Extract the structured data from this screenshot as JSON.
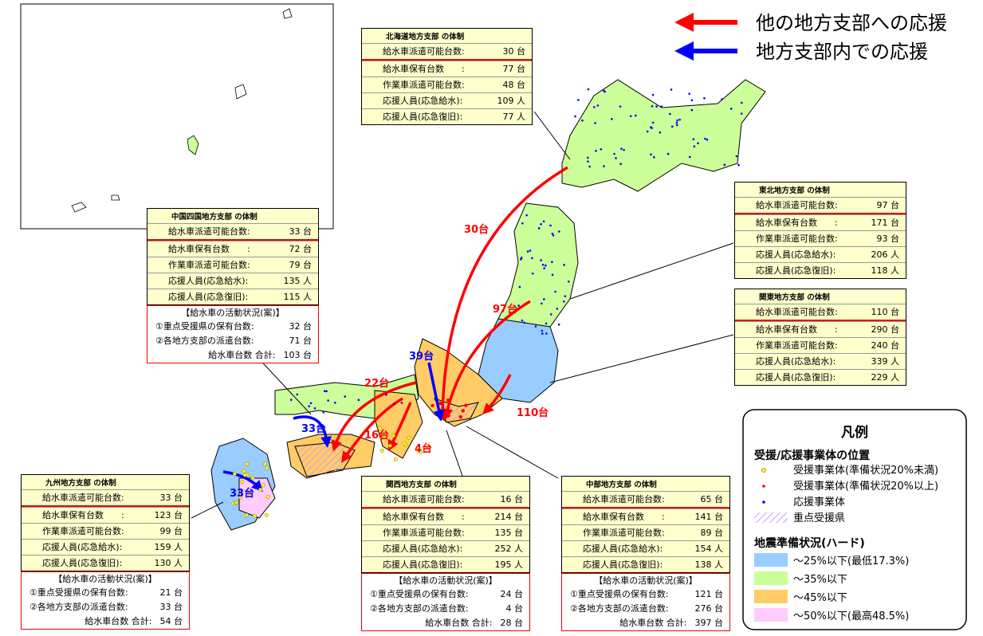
{
  "arrow_legend": [
    {
      "label": "他の地方支部への応援",
      "color": "#ff0000"
    },
    {
      "label": "地方支部内での応援",
      "color": "#0000ff"
    }
  ],
  "boxes": [
    {
      "title": "北海道地方支部 の体制",
      "rows": [
        [
          "給水車派遣可能台数:",
          "30 台"
        ],
        [
          "給水車保有台数　　:",
          "77 台"
        ],
        [
          "作業車派遣可能台数:",
          "48 台"
        ],
        [
          "応援人員(応急給水):",
          "109 人"
        ],
        [
          "応援人員(応急復旧):",
          "77 人"
        ]
      ]
    },
    {
      "title": "中国四国地方支部 の体制",
      "rows": [
        [
          "給水車派遣可能台数:",
          "33 台"
        ],
        [
          "給水車保有台数　　:",
          "72 台"
        ],
        [
          "作業車派遣可能台数:",
          "79 台"
        ],
        [
          "応援人員(応急給水):",
          "135 人"
        ],
        [
          "応援人員(応急復旧):",
          "115 人"
        ]
      ],
      "activity": {
        "title": "【給水車の活動状況(案)】",
        "rows": [
          [
            "①重点受援県の保有台数:",
            "32 台"
          ],
          [
            "②各地方支部の派遣台数:",
            "71 台"
          ],
          [
            "給水車台数 合計:",
            "103 台"
          ]
        ]
      }
    },
    {
      "title": "東北地方支部 の体制",
      "rows": [
        [
          "給水車派遣可能台数:",
          "97 台"
        ],
        [
          "給水車保有台数　　:",
          "171 台"
        ],
        [
          "作業車派遣可能台数:",
          "93 台"
        ],
        [
          "応援人員(応急給水):",
          "206 人"
        ],
        [
          "応援人員(応急復旧):",
          "118 人"
        ]
      ]
    },
    {
      "title": "関東地方支部 の体制",
      "rows": [
        [
          "給水車派遣可能台数:",
          "110 台"
        ],
        [
          "給水車保有台数　　:",
          "290 台"
        ],
        [
          "作業車派遣可能台数:",
          "240 台"
        ],
        [
          "応援人員(応急給水):",
          "339 人"
        ],
        [
          "応援人員(応急復旧):",
          "229 人"
        ]
      ]
    },
    {
      "title": "九州地方支部 の体制",
      "rows": [
        [
          "給水車派遣可能台数:",
          "33 台"
        ],
        [
          "給水車保有台数　　:",
          "123 台"
        ],
        [
          "作業車派遣可能台数:",
          "99 台"
        ],
        [
          "応援人員(応急給水):",
          "159 人"
        ],
        [
          "応援人員(応急復旧):",
          "130 人"
        ]
      ],
      "activity": {
        "title": "【給水車の活動状況(案)】",
        "rows": [
          [
            "①重点受援県の保有台数:",
            "21 台"
          ],
          [
            "②各地方支部の派遣台数:",
            "33 台"
          ],
          [
            "給水車台数 合計:",
            "54 台"
          ]
        ]
      }
    },
    {
      "title": "関西地方支部 の体制",
      "rows": [
        [
          "給水車派遣可能台数:",
          "16 台"
        ],
        [
          "給水車保有台数　　:",
          "214 台"
        ],
        [
          "作業車派遣可能台数:",
          "135 台"
        ],
        [
          "応援人員(応急給水):",
          "252 人"
        ],
        [
          "応援人員(応急復旧):",
          "195 人"
        ]
      ],
      "activity": {
        "title": "【給水車の活動状況(案)】",
        "rows": [
          [
            "①重点受援県の保有台数:",
            "24 台"
          ],
          [
            "②各地方支部の派遣台数:",
            "4 台"
          ],
          [
            "給水車台数 合計:",
            "28 台"
          ]
        ]
      }
    },
    {
      "title": "中部地方支部 の体制",
      "rows": [
        [
          "給水車派遣可能台数:",
          "65 台"
        ],
        [
          "給水車保有台数　　:",
          "141 台"
        ],
        [
          "作業車派遣可能台数:",
          "89 台"
        ],
        [
          "応援人員(応急給水):",
          "154 人"
        ],
        [
          "応援人員(応急復旧):",
          "138 人"
        ]
      ],
      "activity": {
        "title": "【給水車の活動状況(案)】",
        "rows": [
          [
            "①重点受援県の保有台数:",
            "121 台"
          ],
          [
            "②各地方支部の派遣台数:",
            "276 台"
          ],
          [
            "給水車台数 合計:",
            "397 台"
          ]
        ]
      }
    }
  ],
  "flows": [
    {
      "label": "30台",
      "color": "#ff0000"
    },
    {
      "label": "97台",
      "color": "#ff0000"
    },
    {
      "label": "39台",
      "color": "#0000ff"
    },
    {
      "label": "22台",
      "color": "#ff0000"
    },
    {
      "label": "16台",
      "color": "#ff0000"
    },
    {
      "label": "4台",
      "color": "#ff0000"
    },
    {
      "label": "110台",
      "color": "#ff0000"
    },
    {
      "label": "33台",
      "color": "#0000ff"
    },
    {
      "label": "33台",
      "color": "#0000ff"
    }
  ],
  "legend": {
    "title": "凡例",
    "location_title": "受援/応援事業体の位置",
    "location_items": [
      {
        "label": "受援事業体(準備状況20%未満)",
        "color": "#ffff00"
      },
      {
        "label": "受援事業体(準備状況20%以上)",
        "color": "#ff0000"
      },
      {
        "label": "応援事業体",
        "color": "#0000ff"
      },
      {
        "label": "重点受援県",
        "color": "#cc99ff"
      }
    ],
    "status_title": "地震準備状況(ハード)",
    "status_items": [
      {
        "label": "～25%以下(最低17.3%)",
        "color": "#99ccff"
      },
      {
        "label": "～35%以下",
        "color": "#ccff99"
      },
      {
        "label": "～45%以下",
        "color": "#ffcc66"
      },
      {
        "label": "～50%以下(最高48.5%)",
        "color": "#ffccff"
      }
    ]
  }
}
